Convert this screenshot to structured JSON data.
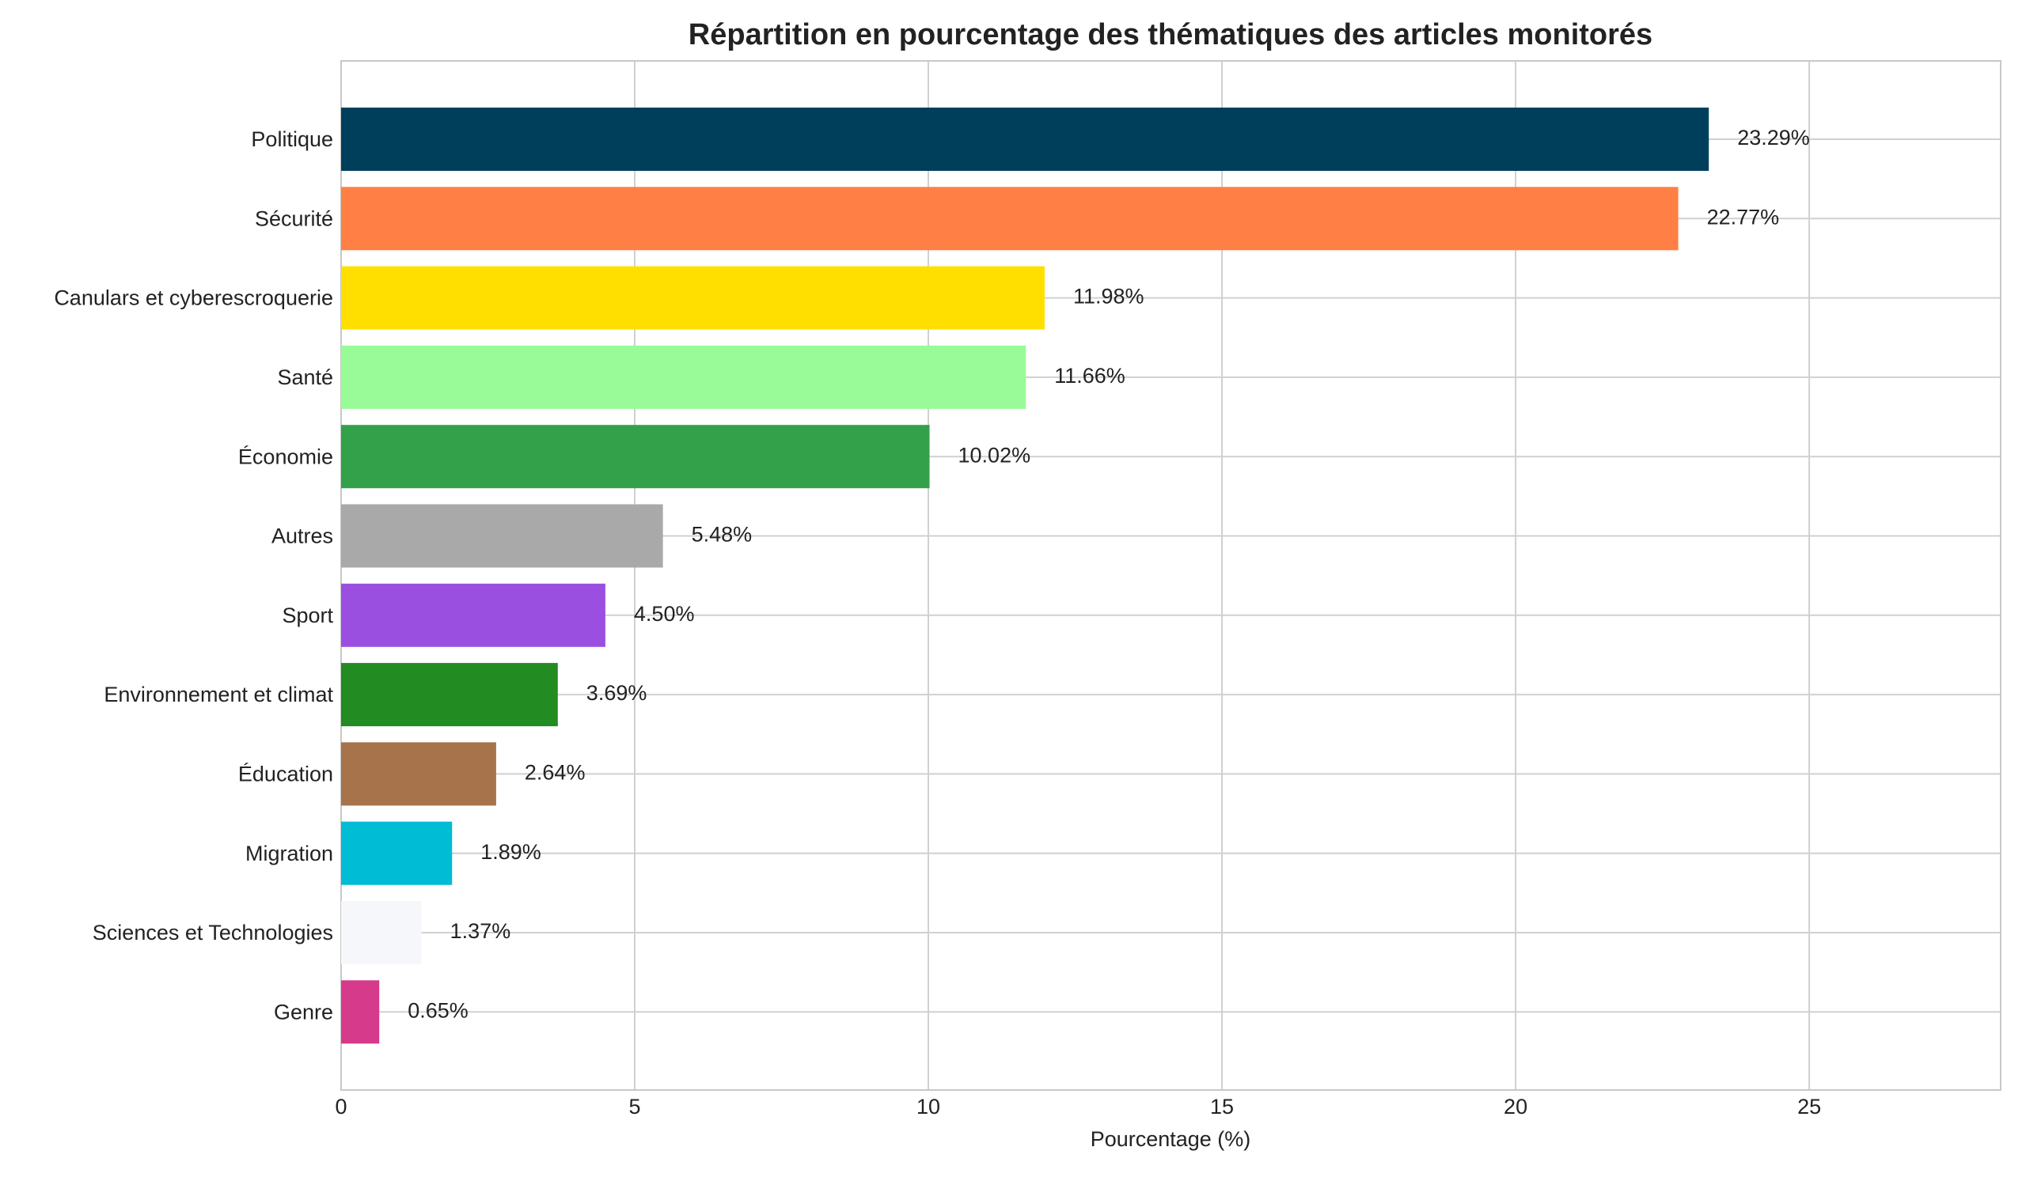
{
  "chart_data": {
    "type": "barh",
    "title": "Répartition en pourcentage des thématiques des articles monitorés",
    "x_label": "Pourcentage (%)",
    "categories": [
      "Politique",
      "Sécurité",
      "Canulars et cyberescroquerie",
      "Santé",
      "Économie",
      "Autres",
      "Sport",
      "Environnement et climat",
      "Éducation",
      "Migration",
      "Sciences et Technologies",
      "Genre"
    ],
    "values": [
      23.29,
      22.77,
      11.98,
      11.66,
      10.02,
      5.48,
      4.5,
      3.69,
      2.64,
      1.89,
      1.37,
      0.65
    ],
    "value_labels": [
      "23.29%",
      "22.77%",
      "11.98%",
      "11.66%",
      "10.02%",
      "5.48%",
      "4.50%",
      "3.69%",
      "2.64%",
      "1.89%",
      "1.37%",
      "0.65%"
    ],
    "colors": [
      "#003f5c",
      "#ff7f45",
      "#ffdf00",
      "#98fb98",
      "#33a04a",
      "#a9a9a9",
      "#9b4fe0",
      "#228b22",
      "#a6734a",
      "#00bcd4",
      "#f5f7fa",
      "#d63a8a"
    ],
    "xlim": [
      0,
      28.26
    ],
    "xticks": [
      0,
      5,
      10,
      15,
      20,
      25
    ],
    "grid": true
  }
}
